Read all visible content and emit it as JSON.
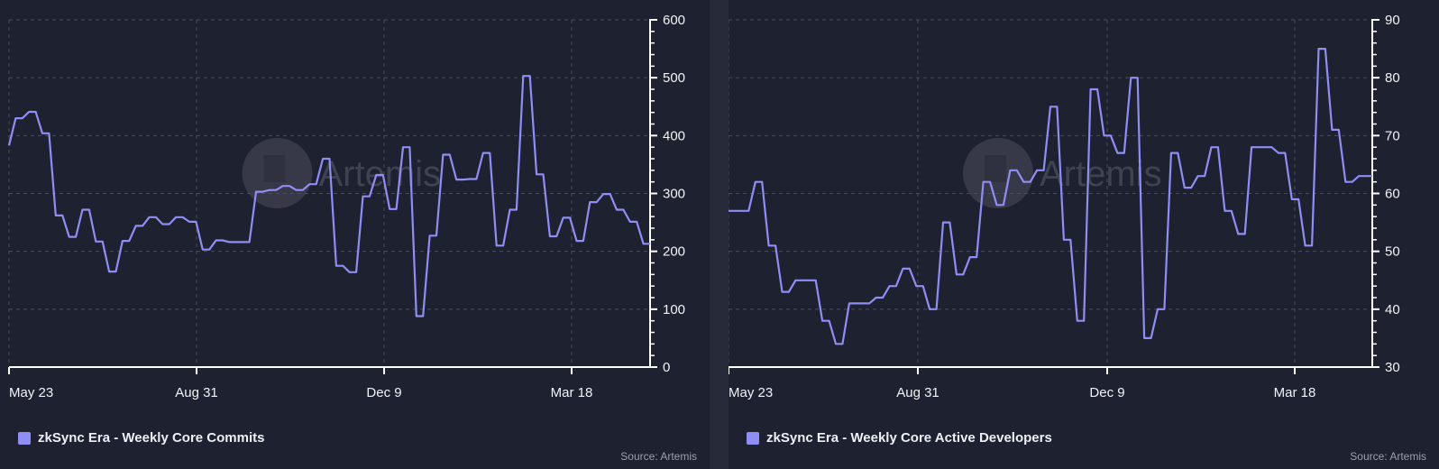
{
  "source_label": "Source: Artemis",
  "watermark": "Artemis",
  "colors": {
    "line": "#8f8ef5",
    "background": "#1e2130",
    "grid": "#4a4d5c",
    "axis": "#ffffff"
  },
  "chart_data": [
    {
      "type": "line",
      "legend": "zkSync Era - Weekly Core Commits",
      "x_tick_labels": [
        "May 23",
        "Aug 31",
        "Dec 9",
        "Mar 18"
      ],
      "ylim": [
        0,
        600
      ],
      "y_ticks": [
        0,
        100,
        200,
        300,
        400,
        500,
        600
      ],
      "grid": true,
      "values": [
        383,
        430,
        430,
        441,
        441,
        404,
        404,
        262,
        262,
        225,
        225,
        272,
        272,
        217,
        217,
        165,
        165,
        218,
        218,
        244,
        244,
        259,
        259,
        247,
        247,
        259,
        259,
        251,
        251,
        203,
        203,
        219,
        219,
        216,
        216,
        216,
        216,
        303,
        303,
        306,
        306,
        313,
        313,
        306,
        306,
        316,
        316,
        360,
        360,
        175,
        175,
        164,
        164,
        295,
        295,
        332,
        332,
        273,
        273,
        380,
        380,
        88,
        88,
        227,
        227,
        367,
        367,
        324,
        324,
        325,
        325,
        370,
        370,
        210,
        210,
        272,
        272,
        503,
        503,
        333,
        333,
        226,
        226,
        258,
        258,
        218,
        218,
        285,
        285,
        299,
        299,
        272,
        272,
        251,
        251,
        213,
        213
      ]
    },
    {
      "type": "line",
      "legend": "zkSync Era - Weekly Core Active Developers",
      "x_tick_labels": [
        "May 23",
        "Aug 31",
        "Dec 9",
        "Mar 18"
      ],
      "ylim": [
        30,
        90
      ],
      "y_ticks": [
        30,
        40,
        50,
        60,
        70,
        80,
        90
      ],
      "grid": true,
      "values": [
        57,
        57,
        57,
        57,
        62,
        62,
        51,
        51,
        43,
        43,
        45,
        45,
        45,
        45,
        38,
        38,
        34,
        34,
        41,
        41,
        41,
        41,
        42,
        42,
        44,
        44,
        47,
        47,
        44,
        44,
        40,
        40,
        55,
        55,
        46,
        46,
        49,
        49,
        62,
        62,
        58,
        58,
        64,
        64,
        62,
        62,
        64,
        64,
        75,
        75,
        52,
        52,
        38,
        38,
        78,
        78,
        70,
        70,
        67,
        67,
        80,
        80,
        35,
        35,
        40,
        40,
        67,
        67,
        61,
        61,
        63,
        63,
        68,
        68,
        57,
        57,
        53,
        53,
        68,
        68,
        68,
        68,
        67,
        67,
        59,
        59,
        51,
        51,
        85,
        85,
        71,
        71,
        62,
        62,
        63,
        63,
        63
      ]
    }
  ]
}
